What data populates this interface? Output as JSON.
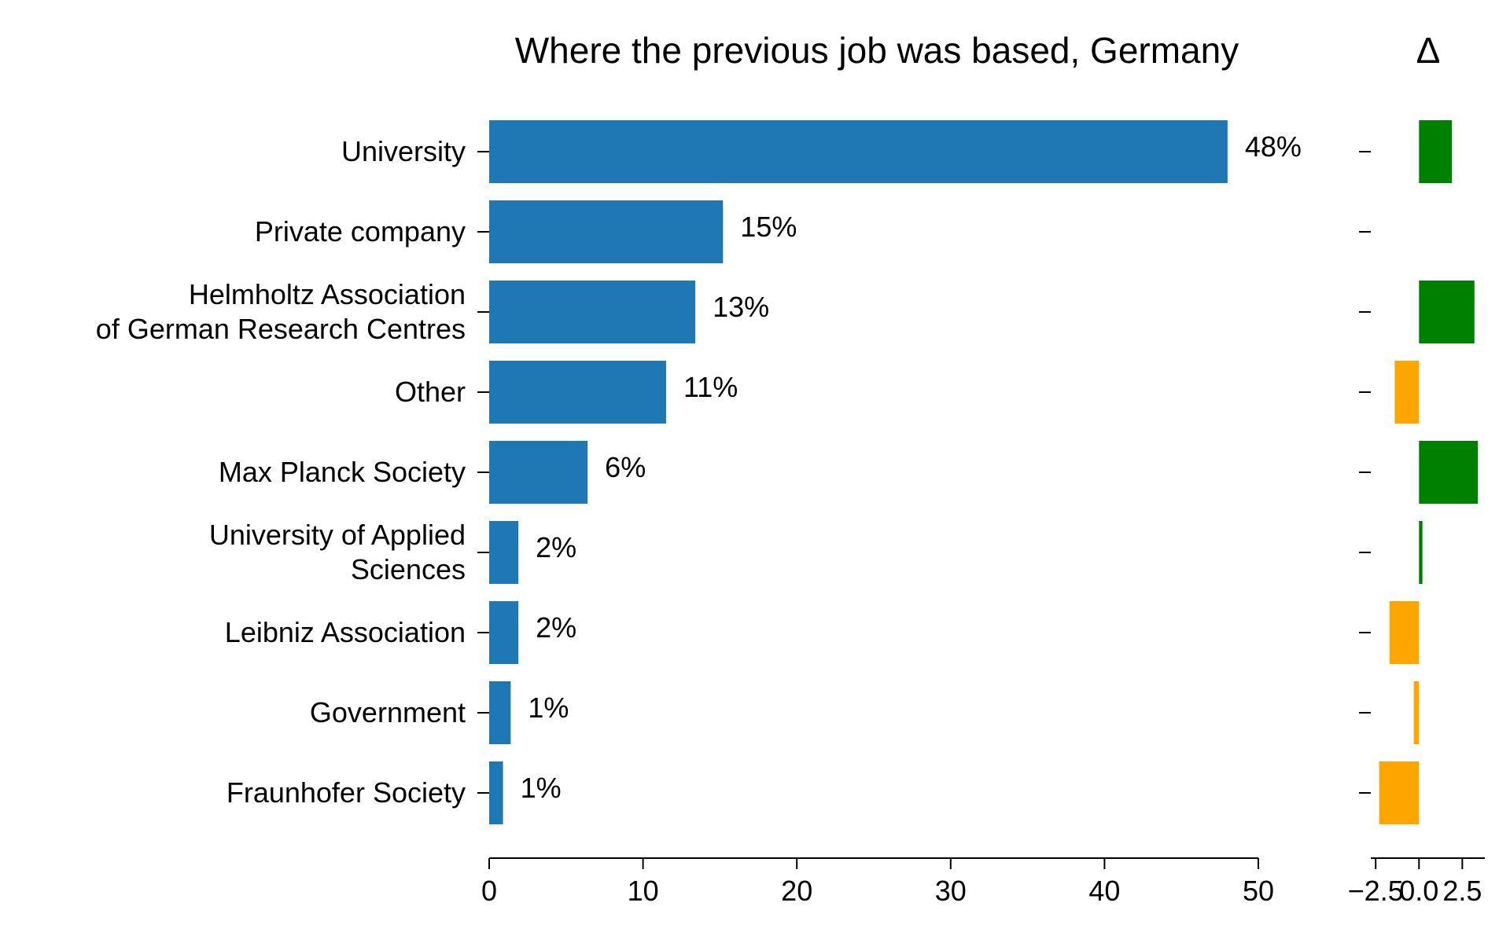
{
  "chart_data": [
    {
      "type": "bar",
      "orientation": "horizontal",
      "title": "Where the previous job was based, Germany",
      "xlabel": "",
      "ylabel": "",
      "categories": [
        [
          "University"
        ],
        [
          "Private company"
        ],
        [
          "Helmholtz Association",
          "of German Research Centres"
        ],
        [
          "Other"
        ],
        [
          "Max Planck Society"
        ],
        [
          "University of Applied",
          "Sciences"
        ],
        [
          "Leibniz Association"
        ],
        [
          "Government"
        ],
        [
          "Fraunhofer Society"
        ]
      ],
      "values": [
        48,
        15.2,
        13.4,
        11.5,
        6.4,
        1.9,
        1.9,
        1.4,
        0.9
      ],
      "value_labels": [
        "48%",
        "15%",
        "13%",
        "11%",
        "6%",
        "2%",
        "2%",
        "1%",
        "1%"
      ],
      "xlim": [
        0,
        50
      ],
      "xticks": [
        0,
        10,
        20,
        30,
        40,
        50
      ],
      "xtick_labels": [
        "0",
        "10",
        "20",
        "30",
        "40",
        "50"
      ],
      "bar_color": "#1f77b4",
      "grid": false
    },
    {
      "type": "bar",
      "orientation": "horizontal",
      "title": "Δ",
      "categories": [
        [
          "University"
        ],
        [
          "Private company"
        ],
        [
          "Helmholtz Association",
          "of German Research Centres"
        ],
        [
          "Other"
        ],
        [
          "Max Planck Society"
        ],
        [
          "University of Applied",
          "Sciences"
        ],
        [
          "Leibniz Association"
        ],
        [
          "Government"
        ],
        [
          "Fraunhofer Society"
        ]
      ],
      "values": [
        1.9,
        0.0,
        3.2,
        -1.4,
        3.4,
        0.2,
        -1.7,
        -0.3,
        -2.3
      ],
      "xlim": [
        -2.6,
        3.8
      ],
      "xticks": [
        -2.5,
        0.0,
        2.5
      ],
      "xtick_labels": [
        "−2.5",
        "0.0",
        "2.5"
      ],
      "positive_color": "#008000",
      "negative_color": "#ffa500",
      "grid": false
    }
  ]
}
